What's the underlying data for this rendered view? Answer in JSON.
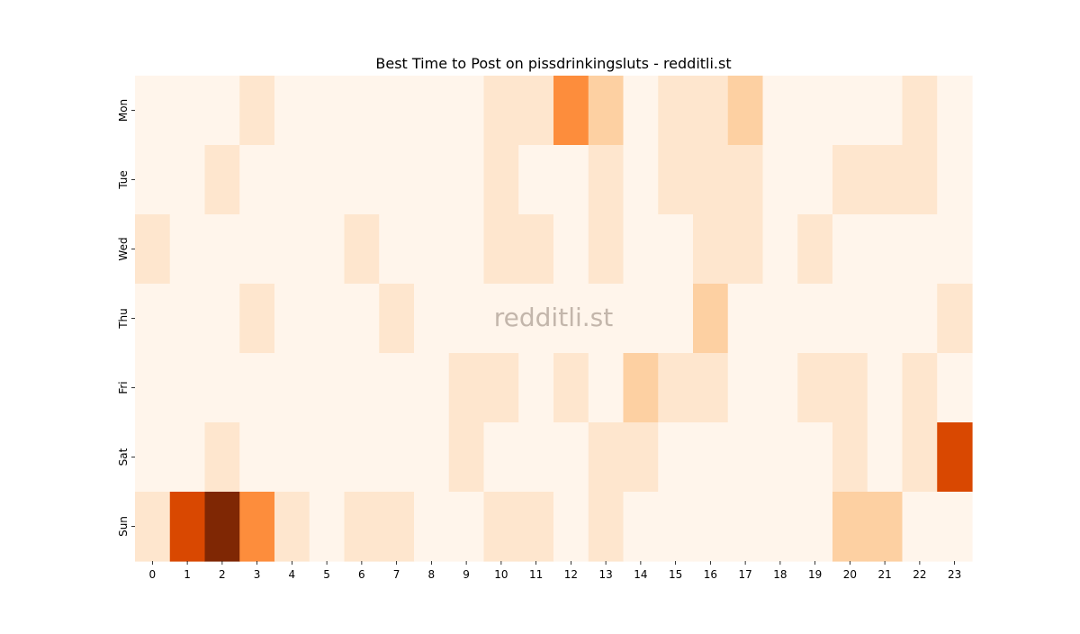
{
  "chart_data": {
    "type": "heatmap",
    "title": "Best Time to Post on pissdrinkingsluts - redditli.st",
    "xlabel": "",
    "ylabel": "",
    "x_categories": [
      "0",
      "1",
      "2",
      "3",
      "4",
      "5",
      "6",
      "7",
      "8",
      "9",
      "10",
      "11",
      "12",
      "13",
      "14",
      "15",
      "16",
      "17",
      "18",
      "19",
      "20",
      "21",
      "22",
      "23"
    ],
    "y_categories": [
      "Mon",
      "Tue",
      "Wed",
      "Thu",
      "Fri",
      "Sat",
      "Sun"
    ],
    "values": [
      [
        0,
        0,
        0,
        1,
        0,
        0,
        0,
        0,
        0,
        0,
        1,
        1,
        5,
        3,
        0,
        1,
        1,
        3,
        0,
        0,
        0,
        0,
        1,
        0
      ],
      [
        0,
        0,
        1,
        0,
        0,
        0,
        0,
        0,
        0,
        0,
        1,
        0,
        0,
        1,
        0,
        1,
        1,
        1,
        0,
        0,
        1,
        1,
        1,
        0
      ],
      [
        1,
        0,
        0,
        0,
        0,
        0,
        1,
        0,
        0,
        0,
        1,
        1,
        0,
        1,
        0,
        0,
        1,
        1,
        0,
        1,
        0,
        0,
        0,
        0
      ],
      [
        0,
        0,
        0,
        1,
        0,
        0,
        0,
        1,
        0,
        0,
        0,
        0,
        0,
        0,
        0,
        0,
        3,
        0,
        0,
        0,
        0,
        0,
        0,
        1
      ],
      [
        0,
        0,
        0,
        0,
        0,
        0,
        0,
        0,
        0,
        1,
        1,
        0,
        1,
        0,
        3,
        1,
        1,
        0,
        0,
        1,
        1,
        0,
        1,
        0
      ],
      [
        0,
        0,
        1,
        0,
        0,
        0,
        0,
        0,
        0,
        1,
        0,
        0,
        0,
        1,
        1,
        0,
        0,
        0,
        0,
        0,
        1,
        0,
        1,
        7
      ],
      [
        1,
        8,
        10,
        5,
        1,
        0,
        1,
        1,
        0,
        0,
        1,
        1,
        0,
        1,
        0,
        0,
        0,
        0,
        0,
        0,
        3,
        3,
        0,
        0
      ]
    ],
    "colormap": [
      "#fff5eb",
      "#fee6ce",
      "#fdd0a2",
      "#fdae6b",
      "#fd8d3c",
      "#f16913",
      "#d94801",
      "#a63603",
      "#7f2704"
    ],
    "vmin": 0,
    "vmax": 10,
    "colorbar": false,
    "grid": false,
    "watermark": "redditli.st"
  }
}
